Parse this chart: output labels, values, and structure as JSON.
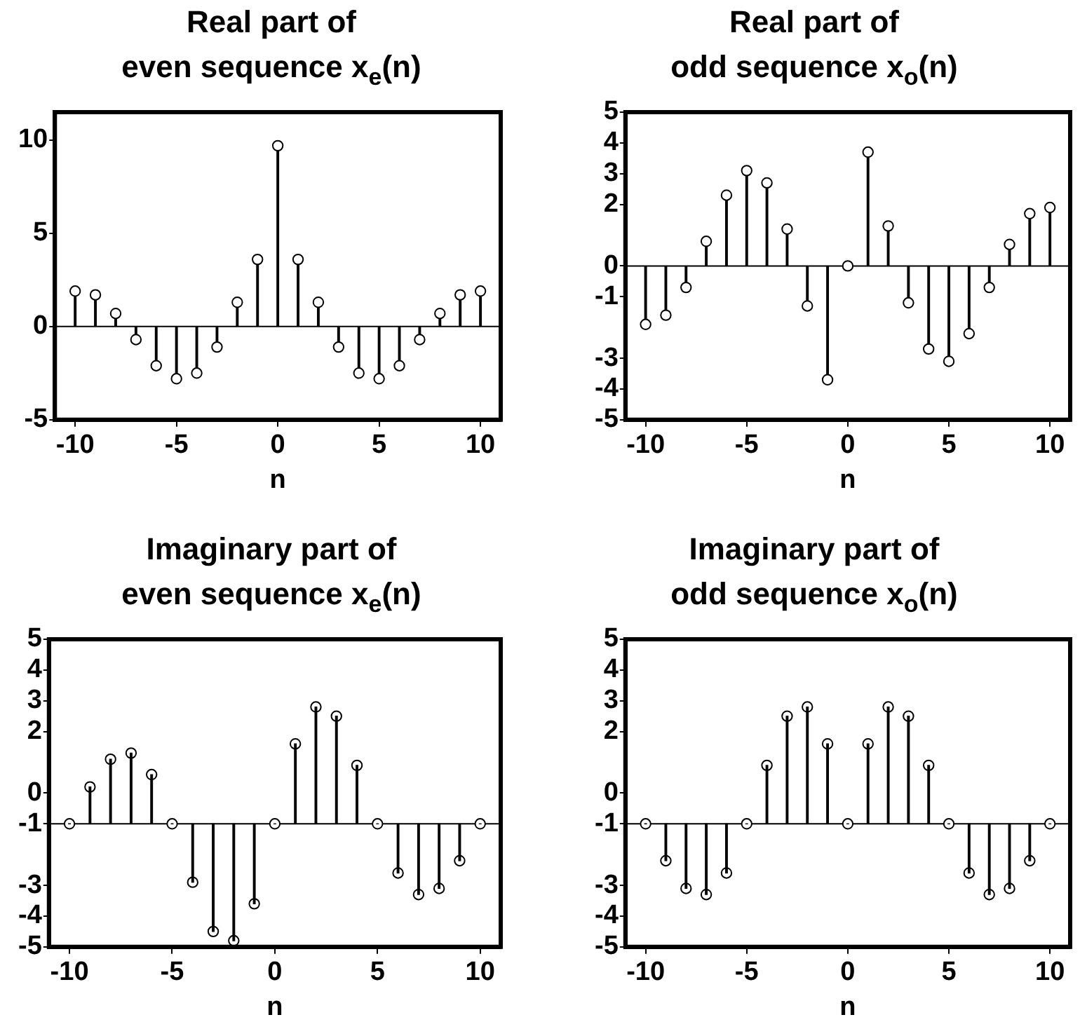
{
  "chart_data": [
    {
      "type": "lollipop",
      "title": "Real part of\neven sequence x$_{e}$(n)",
      "xlabel": "n",
      "color": "#000000",
      "marker": "circle",
      "grid": false,
      "legend": false,
      "x": [
        -10,
        -9,
        -8,
        -7,
        -6,
        -5,
        -4,
        -3,
        -2,
        -1,
        0,
        1,
        2,
        3,
        4,
        5,
        6,
        7,
        8,
        9,
        10
      ],
      "values": [
        1.9,
        1.7,
        0.7,
        -0.7,
        -2.1,
        -2.8,
        -2.5,
        -1.1,
        1.3,
        3.6,
        9.7,
        3.6,
        1.3,
        -1.1,
        -2.5,
        -2.8,
        -2.1,
        -0.7,
        0.7,
        1.7,
        1.9
      ],
      "ref_lines": [
        {
          "axis": "y",
          "value": 0,
          "color": "#000000"
        }
      ],
      "xlim": [
        -11,
        11
      ],
      "xticks": [
        -10,
        -5,
        0,
        5,
        10
      ],
      "ylim": [
        -5,
        11.5
      ],
      "yticks": [
        10,
        5,
        0,
        -5
      ]
    },
    {
      "type": "lollipop",
      "title": "Real part of\nodd sequence x$_{o}$(n)",
      "xlabel": "n",
      "color": "#000000",
      "marker": "circle",
      "grid": false,
      "legend": false,
      "x": [
        -10,
        -9,
        -8,
        -7,
        -6,
        -5,
        -4,
        -3,
        -2,
        -1,
        0,
        1,
        2,
        3,
        4,
        5,
        6,
        7,
        8,
        9,
        10
      ],
      "values": [
        -1.9,
        -1.6,
        -0.7,
        0.8,
        2.3,
        3.1,
        2.7,
        1.2,
        -1.3,
        -3.7,
        0,
        3.7,
        1.3,
        -1.2,
        -2.7,
        -3.1,
        -2.2,
        -0.7,
        0.7,
        1.7,
        1.9
      ],
      "ref_lines": [
        {
          "axis": "y",
          "value": 0,
          "color": "#000000"
        }
      ],
      "xlim": [
        -11,
        11
      ],
      "xticks": [
        -10,
        -5,
        0,
        5,
        10
      ],
      "ylim": [
        -5,
        5
      ],
      "yticks": [
        5,
        4,
        3,
        2,
        0,
        -1,
        -3,
        -4,
        -5
      ]
    },
    {
      "type": "bar",
      "title": "Imaginary part of\neven sequence x$_{e}$(n)",
      "xlabel": "n",
      "grid": false,
      "legend": false,
      "x": [
        -10,
        -9,
        -8,
        -7,
        -6,
        -5,
        -4,
        -3,
        -2,
        -1,
        0,
        1,
        2,
        3,
        4,
        5,
        6,
        7,
        8,
        9,
        10
      ],
      "series": [
        {
          "color": "#000000",
          "base": [
            -1,
            -1,
            -1,
            -1,
            -1,
            -1,
            -1,
            -1,
            -1,
            -1,
            -1,
            -1,
            -1,
            -1,
            -1,
            -1,
            -1,
            -1,
            -1,
            -1,
            -1
          ],
          "values": [
            0,
            1.2,
            2.1,
            2.3,
            1.6,
            0,
            -1.9,
            -3.5,
            -3.8,
            -2.6,
            0,
            2.6,
            3.8,
            3.5,
            1.9,
            0,
            -1.6,
            -2.3,
            -2.1,
            -1.2,
            0
          ]
        },
        {
          "type": "scatter",
          "color": "#000000",
          "marker": "circle",
          "values": [
            -1,
            0.2,
            1.1,
            1.3,
            0.6,
            -1,
            -2.9,
            -4.5,
            -4.8,
            -3.6,
            -1,
            1.6,
            2.8,
            2.5,
            0.9,
            -1,
            -2.6,
            -3.3,
            -3.1,
            -2.2,
            -1
          ]
        }
      ],
      "ref_lines": [
        {
          "axis": "y",
          "value": -1,
          "color": "#000000"
        }
      ],
      "xlim": [
        -11,
        11
      ],
      "xticks": [
        -10,
        -5,
        0,
        5,
        10
      ],
      "ylim": [
        -5,
        5
      ],
      "yticks": [
        5,
        4,
        3,
        2,
        0,
        -1,
        -3,
        -4,
        -5
      ]
    },
    {
      "type": "bar",
      "title": "Imaginary part of\nodd sequence x$_{o}$(n)",
      "xlabel": "n",
      "grid": false,
      "legend": false,
      "x": [
        -10,
        -9,
        -8,
        -7,
        -6,
        -5,
        -4,
        -3,
        -2,
        -1,
        0,
        1,
        2,
        3,
        4,
        5,
        6,
        7,
        8,
        9,
        10
      ],
      "series": [
        {
          "color": "#000000",
          "base": [
            -1,
            -1,
            -1,
            -1,
            -1,
            -1,
            -1,
            -1,
            -1,
            -1,
            -1,
            -1,
            -1,
            -1,
            -1,
            -1,
            -1,
            -1,
            -1,
            -1,
            -1
          ],
          "values": [
            0,
            -1.2,
            -2.1,
            -2.3,
            -1.6,
            0,
            1.9,
            3.5,
            3.8,
            2.6,
            0,
            2.6,
            3.8,
            3.5,
            1.9,
            0,
            -1.6,
            -2.3,
            -2.1,
            -1.2,
            0
          ]
        },
        {
          "type": "scatter",
          "color": "#000000",
          "marker": "circle",
          "values": [
            -1,
            -2.2,
            -3.1,
            -3.3,
            -2.6,
            -1,
            0.9,
            2.5,
            2.8,
            1.6,
            -1,
            1.6,
            2.8,
            2.5,
            0.9,
            -1,
            -2.6,
            -3.3,
            -3.1,
            -2.2,
            -1
          ]
        }
      ],
      "ref_lines": [
        {
          "axis": "y",
          "value": -1,
          "color": "#000000"
        }
      ],
      "xlim": [
        -11,
        11
      ],
      "xticks": [
        -10,
        -5,
        0,
        5,
        10
      ],
      "ylim": [
        -5,
        5
      ],
      "yticks": [
        5,
        4,
        3,
        2,
        0,
        -1,
        -3,
        -4,
        -5
      ]
    }
  ]
}
